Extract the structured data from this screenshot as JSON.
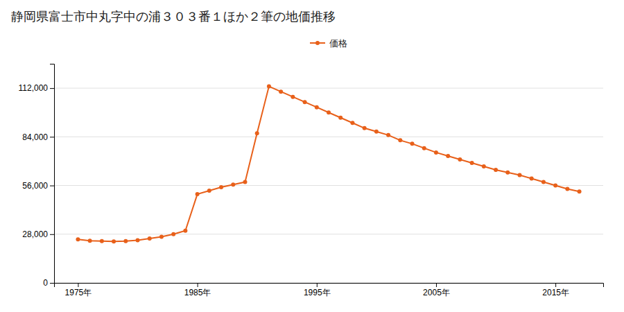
{
  "chart_data": {
    "type": "line",
    "title": "静岡県富士市中丸字中の浦３０３番１ほか２筆の地価推移",
    "x": [
      1975,
      1976,
      1977,
      1978,
      1979,
      1980,
      1981,
      1982,
      1983,
      1984,
      1985,
      1986,
      1987,
      1988,
      1989,
      1990,
      1991,
      1992,
      1993,
      1994,
      1995,
      1996,
      1997,
      1998,
      1999,
      2000,
      2001,
      2002,
      2003,
      2004,
      2005,
      2006,
      2007,
      2008,
      2009,
      2010,
      2011,
      2012,
      2013,
      2014,
      2015,
      2016,
      2017
    ],
    "series": [
      {
        "name": "価格",
        "color": "#E8601A",
        "marker": "circle",
        "values": [
          25000,
          24200,
          24000,
          23800,
          24000,
          24500,
          25500,
          26500,
          28000,
          30000,
          51000,
          53000,
          55000,
          56500,
          58000,
          86000,
          113000,
          110000,
          107000,
          104000,
          101000,
          98000,
          95000,
          92000,
          89000,
          87000,
          85000,
          82000,
          80000,
          77500,
          75000,
          73000,
          71000,
          69000,
          67000,
          65000,
          63500,
          62000,
          60000,
          58000,
          56000,
          54000,
          52500
        ]
      }
    ],
    "xlim": [
      1973,
      2019
    ],
    "xticks": [
      {
        "value": 1975,
        "label": "1975年"
      },
      {
        "value": 1985,
        "label": "1985年"
      },
      {
        "value": 1995,
        "label": "1995年"
      },
      {
        "value": 2005,
        "label": "2005年"
      },
      {
        "value": 2015,
        "label": "2015年"
      }
    ],
    "ylim": [
      0,
      126000
    ],
    "yticks": [
      0,
      {
        "value": 28000,
        "label": "28,000"
      },
      {
        "value": 56000,
        "label": "56,000"
      },
      {
        "value": 84000,
        "label": "84,000"
      },
      {
        "value": 112000,
        "label": "112,000"
      }
    ],
    "grid": true,
    "legend": "top"
  }
}
